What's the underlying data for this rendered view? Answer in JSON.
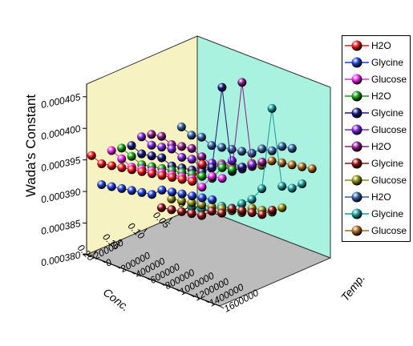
{
  "chart_data": {
    "type": "line",
    "subtype": "3d-line-with-sphere-markers",
    "ylabel": "Wada's Constant",
    "xlabel": "Conc.",
    "zlabel": "Temp.",
    "y_ticks": [
      "0.000380",
      "0.000385",
      "0.000390",
      "0.000395",
      "0.000400",
      "0.000405"
    ],
    "x_ticks": [
      "0.00",
      "0.05",
      "0.10",
      "0.15",
      "0.20"
    ],
    "z_ticks": [
      "-200000",
      "0",
      "200000",
      "400000",
      "600000",
      "800000",
      "1000000",
      "1200000",
      "1400000",
      "1600000"
    ],
    "ylim": [
      0.00038,
      0.000407
    ],
    "xlim": [
      0.0,
      0.22
    ],
    "zlim": [
      -200000,
      1600000
    ],
    "legend_position": "right",
    "x": [
      0.0,
      0.02,
      0.04,
      0.06,
      0.08,
      0.1,
      0.12,
      0.14,
      0.16,
      0.18,
      0.2,
      0.22
    ],
    "series": [
      {
        "name": "H2O",
        "color": "#e8141c",
        "values": [
          0.000387,
          0.000385,
          0.000386,
          0.000387,
          0.000388,
          0.000389,
          0.00039,
          0.000391,
          0.000392,
          0.000393,
          0.000394,
          0.000396
        ]
      },
      {
        "name": "Glycine",
        "color": "#1f3fd6",
        "values": [
          0.000382,
          0.000383,
          0.000384,
          0.000385,
          0.000386,
          0.000387,
          0.000387,
          0.000388,
          0.000389,
          0.00039,
          0.000391,
          0.000392
        ]
      },
      {
        "name": "Glucose",
        "color": "#ee22ee",
        "values": [
          0.000386,
          0.000387,
          0.000386,
          0.000388,
          0.000389,
          0.00039,
          0.000391,
          0.000392,
          0.000393,
          0.000394,
          0.000396,
          0.000398
        ]
      },
      {
        "name": "H2O",
        "color": "#169a16",
        "values": [
          0.000388,
          0.000389,
          0.000388,
          0.000389,
          0.00039,
          0.000391,
          0.000392,
          0.000393,
          0.000394,
          0.000395,
          0.000397,
          0.000399
        ]
      },
      {
        "name": "Glycine",
        "color": "#16167a",
        "values": [
          0.000389,
          0.000389,
          0.000403,
          0.000391,
          0.000391,
          0.000392,
          0.000393,
          0.000394,
          0.000396,
          0.000397,
          0.000398,
          0.0004
        ]
      },
      {
        "name": "Glucose",
        "color": "#7a22e0",
        "values": [
          0.00039,
          0.00039,
          0.000392,
          0.000392,
          0.000393,
          0.000393,
          0.000395,
          0.000396,
          0.000398,
          0.000399,
          0.0004,
          0.000402
        ]
      },
      {
        "name": "H2O",
        "color": "#8a1a8a",
        "values": [
          0.000391,
          0.000391,
          0.000405,
          0.000392,
          0.000393,
          0.000394,
          0.000396,
          0.000398,
          0.000399,
          0.0004,
          0.000402,
          0.000403
        ]
      },
      {
        "name": "Glycine",
        "color": "#8a1010",
        "values": [
          0.000384,
          0.000384,
          0.000385,
          0.000386,
          0.000387,
          0.000387,
          0.000388,
          0.000388,
          0.000389,
          0.00039,
          0.000391,
          0.000392
        ]
      },
      {
        "name": "Glucose",
        "color": "#8a8a10",
        "values": [
          0.000385,
          0.000385,
          0.000386,
          0.000387,
          0.000387,
          0.000388,
          0.000389,
          0.00039,
          0.000391,
          0.000392,
          0.000393,
          0.000394
        ]
      },
      {
        "name": "H2O",
        "color": "#2e5e9a",
        "values": [
          0.000395,
          0.000396,
          0.000396,
          0.000397,
          0.000397,
          0.000398,
          0.000399,
          0.0004,
          0.000401,
          0.000403,
          0.000404,
          0.000406
        ]
      },
      {
        "name": "Glycine",
        "color": "#169a9a",
        "values": [
          0.00039,
          0.00039,
          0.000391,
          0.000404,
          0.000392,
          0.000391,
          0.000391,
          0.000391,
          0.000392,
          0.000392,
          0.000393,
          0.000394
        ]
      },
      {
        "name": "Glucose",
        "color": "#a8641e",
        "values": [
          0.000393,
          0.000394,
          0.000395,
          0.000396,
          0.000397,
          0.000397,
          0.000398,
          0.000398,
          0.000399,
          0.0004,
          0.0004,
          0.000401
        ]
      }
    ],
    "wall_colors": {
      "left": "#f7f2c2",
      "right": "#a8f2df",
      "floor": "#bcbcbc"
    }
  }
}
